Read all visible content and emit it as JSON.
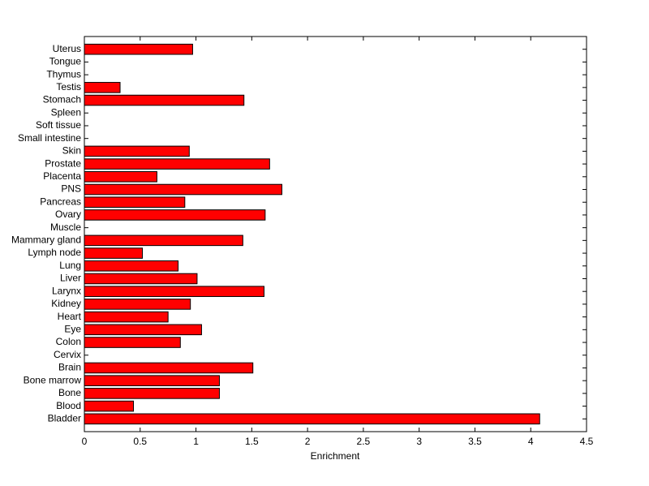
{
  "chart_data": {
    "type": "barh",
    "xlabel": "Enrichment",
    "categories": [
      "Bladder",
      "Blood",
      "Bone",
      "Bone marrow",
      "Brain",
      "Cervix",
      "Colon",
      "Eye",
      "Heart",
      "Kidney",
      "Larynx",
      "Liver",
      "Lung",
      "Lymph node",
      "Mammary gland",
      "Muscle",
      "Ovary",
      "Pancreas",
      "PNS",
      "Placenta",
      "Prostate",
      "Skin",
      "Small intestine",
      "Soft tissue",
      "Spleen",
      "Stomach",
      "Testis",
      "Thymus",
      "Tongue",
      "Uterus"
    ],
    "values": [
      4.08,
      0.44,
      1.21,
      1.21,
      1.51,
      0,
      0.86,
      1.05,
      0.75,
      0.95,
      1.61,
      1.01,
      0.84,
      0.52,
      1.42,
      0,
      1.62,
      0.9,
      1.77,
      0.65,
      1.66,
      0.94,
      0,
      0,
      0,
      1.43,
      0.32,
      0,
      0,
      0.97
    ],
    "color": "#ff0000",
    "xlim": [
      0,
      4.5
    ],
    "xticks": [
      0,
      0.5,
      1,
      1.5,
      2,
      2.5,
      3,
      3.5,
      4,
      4.5
    ]
  }
}
